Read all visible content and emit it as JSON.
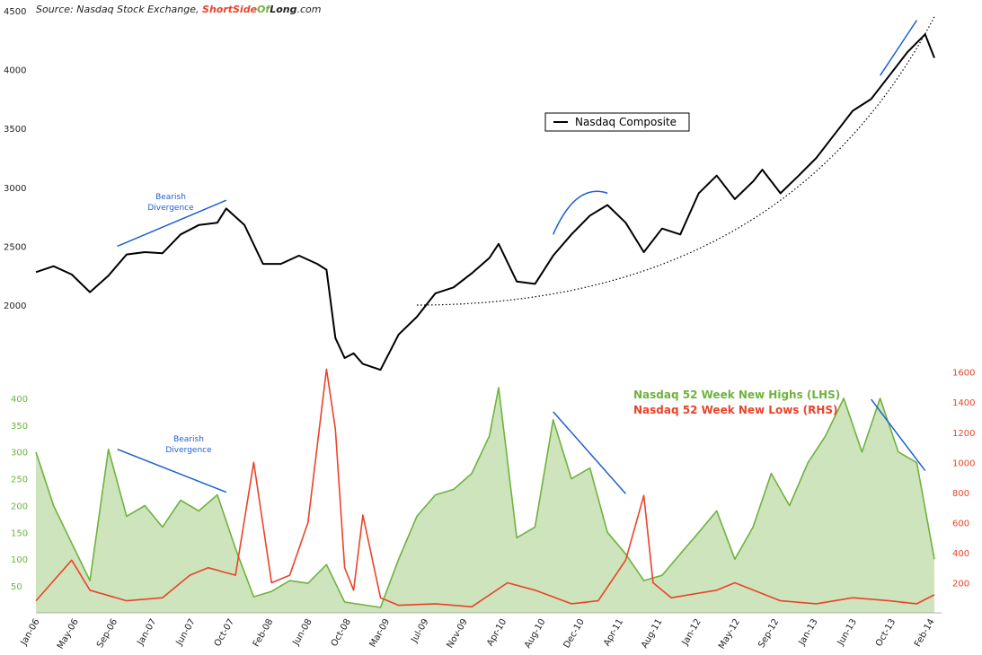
{
  "source": {
    "prefix": "Source: Nasdaq Stock Exchange, ",
    "brand_part1": "ShortSide",
    "brand_part2": "Of",
    "brand_part3": "Long",
    "brand_suffix": ".com"
  },
  "colors": {
    "composite": "#000000",
    "highs": "#6fb23e",
    "lows": "#e8442a",
    "annotation": "#1f5fcf"
  },
  "chart_data": [
    {
      "type": "line",
      "legend": {
        "label": "Nasdaq Composite",
        "placement": "top-center"
      },
      "ylim": [
        1600,
        4500
      ],
      "yticks": [
        2000,
        2500,
        3000,
        3500,
        4000,
        4500
      ],
      "series": [
        {
          "name": "Nasdaq Composite",
          "x": [
            "2006-01",
            "2006-03",
            "2006-05",
            "2006-07",
            "2006-09",
            "2006-11",
            "2007-01",
            "2007-03",
            "2007-05",
            "2007-07",
            "2007-09",
            "2007-10",
            "2007-12",
            "2008-02",
            "2008-04",
            "2008-06",
            "2008-08",
            "2008-09",
            "2008-10",
            "2008-11",
            "2008-12",
            "2009-01",
            "2009-03",
            "2009-05",
            "2009-07",
            "2009-09",
            "2009-11",
            "2010-01",
            "2010-03",
            "2010-04",
            "2010-06",
            "2010-08",
            "2010-10",
            "2010-12",
            "2011-02",
            "2011-04",
            "2011-06",
            "2011-08",
            "2011-10",
            "2011-12",
            "2012-02",
            "2012-04",
            "2012-06",
            "2012-08",
            "2012-09",
            "2012-11",
            "2013-01",
            "2013-03",
            "2013-05",
            "2013-07",
            "2013-09",
            "2013-11",
            "2014-01",
            "2014-03",
            "2014-04"
          ],
          "values": [
            2280,
            2330,
            2260,
            2110,
            2250,
            2430,
            2450,
            2440,
            2600,
            2680,
            2700,
            2820,
            2680,
            2350,
            2350,
            2420,
            2350,
            2300,
            1720,
            1550,
            1590,
            1500,
            1450,
            1750,
            1900,
            2100,
            2150,
            2270,
            2400,
            2520,
            2200,
            2180,
            2420,
            2600,
            2760,
            2850,
            2700,
            2450,
            2650,
            2600,
            2950,
            3100,
            2900,
            3050,
            3150,
            2950,
            3100,
            3250,
            3450,
            3650,
            3750,
            3950,
            4150,
            4300,
            4100
          ]
        }
      ],
      "trend_curve": {
        "style": "dotted",
        "from": [
          "2009-07",
          2000
        ],
        "to": [
          "2014-04",
          4450
        ]
      },
      "annotations": [
        {
          "text_line1": "Bearish",
          "text_line2": "Divergence",
          "line_from": [
            "2006-10",
            2500
          ],
          "line_to": [
            "2007-10",
            2890
          ]
        },
        {
          "arc": true,
          "from": [
            "2010-10",
            2600
          ],
          "to": [
            "2011-04",
            2950
          ]
        },
        {
          "line_from": [
            "2013-10",
            3950
          ],
          "line_to": [
            "2014-02",
            4420
          ]
        }
      ]
    },
    {
      "type": "area",
      "legend": {
        "placement": "top-right"
      },
      "x_tick_labels": [
        "Jan-06",
        "May-06",
        "Sep-06",
        "Jan-07",
        "Jun-07",
        "Oct-07",
        "Feb-08",
        "Jun-08",
        "Oct-08",
        "Mar-09",
        "Jul-09",
        "Nov-09",
        "Apr-10",
        "Aug-10",
        "Dec-10",
        "Apr-11",
        "Aug-11",
        "Jan-12",
        "May-12",
        "Sep-12",
        "Jan-13",
        "Jun-13",
        "Oct-13",
        "Feb-14"
      ],
      "y_left": {
        "label": "Nasdaq 52 Week New Highs (LHS)",
        "ylim": [
          0,
          440
        ],
        "yticks": [
          50,
          100,
          150,
          200,
          250,
          300,
          350,
          400
        ]
      },
      "y_right": {
        "label": "Nasdaq 52 Week New Lows (RHS)",
        "ylim": [
          0,
          1640
        ],
        "yticks": [
          200,
          400,
          600,
          800,
          1000,
          1200,
          1400,
          1600
        ]
      },
      "series": [
        {
          "name": "Nasdaq 52 Week New Highs (LHS)",
          "axis": "left",
          "x": [
            "2006-01",
            "2006-03",
            "2006-05",
            "2006-07",
            "2006-09",
            "2006-11",
            "2007-01",
            "2007-03",
            "2007-05",
            "2007-07",
            "2007-09",
            "2007-11",
            "2008-01",
            "2008-03",
            "2008-05",
            "2008-07",
            "2008-09",
            "2008-11",
            "2009-01",
            "2009-03",
            "2009-05",
            "2009-07",
            "2009-09",
            "2009-11",
            "2010-01",
            "2010-03",
            "2010-04",
            "2010-06",
            "2010-08",
            "2010-10",
            "2010-12",
            "2011-02",
            "2011-04",
            "2011-06",
            "2011-08",
            "2011-10",
            "2011-12",
            "2012-02",
            "2012-04",
            "2012-06",
            "2012-08",
            "2012-10",
            "2012-12",
            "2013-02",
            "2013-04",
            "2013-06",
            "2013-08",
            "2013-10",
            "2013-12",
            "2014-02",
            "2014-04"
          ],
          "values": [
            300,
            200,
            130,
            60,
            305,
            180,
            200,
            160,
            210,
            190,
            220,
            120,
            30,
            40,
            60,
            55,
            90,
            20,
            15,
            10,
            100,
            180,
            220,
            230,
            260,
            330,
            420,
            140,
            160,
            360,
            250,
            270,
            150,
            110,
            60,
            70,
            110,
            150,
            190,
            100,
            160,
            260,
            200,
            280,
            330,
            400,
            300,
            400,
            300,
            280,
            100
          ]
        },
        {
          "name": "Nasdaq 52 Week New Lows (RHS)",
          "axis": "right",
          "x": [
            "2006-01",
            "2006-05",
            "2006-07",
            "2006-11",
            "2007-03",
            "2007-06",
            "2007-08",
            "2007-11",
            "2008-01",
            "2008-03",
            "2008-05",
            "2008-07",
            "2008-09",
            "2008-10",
            "2008-11",
            "2008-12",
            "2009-01",
            "2009-03",
            "2009-05",
            "2009-09",
            "2010-01",
            "2010-05",
            "2010-08",
            "2010-12",
            "2011-03",
            "2011-06",
            "2011-08",
            "2011-09",
            "2011-11",
            "2012-04",
            "2012-06",
            "2012-11",
            "2013-03",
            "2013-07",
            "2013-11",
            "2014-02",
            "2014-04"
          ],
          "values": [
            80,
            350,
            150,
            80,
            100,
            250,
            300,
            250,
            1000,
            200,
            250,
            600,
            1620,
            1220,
            300,
            150,
            650,
            100,
            50,
            60,
            40,
            200,
            150,
            60,
            80,
            350,
            780,
            200,
            100,
            150,
            200,
            80,
            60,
            100,
            80,
            60,
            120
          ]
        }
      ],
      "annotations": [
        {
          "text_line1": "Bearish",
          "text_line2": "Divergence",
          "line_from": [
            "2006-10",
            305
          ],
          "line_to": [
            "2007-10",
            225
          ]
        },
        {
          "line_from": [
            "2010-10",
            375
          ],
          "line_to": [
            "2011-06",
            222
          ]
        },
        {
          "line_from": [
            "2013-09",
            398
          ],
          "line_to": [
            "2014-03",
            265
          ]
        }
      ]
    }
  ]
}
